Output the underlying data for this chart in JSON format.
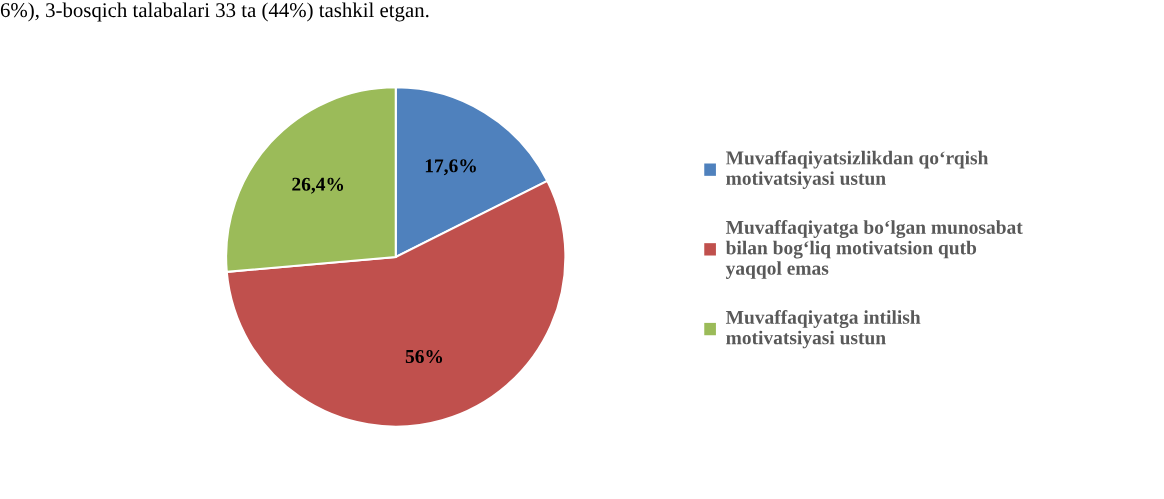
{
  "chart_data": {
    "type": "pie",
    "categories": [
      "Muvaffaqiyatsizlikdan qo‘rqish motivatsiyasi ustun",
      "Muvaffaqiyatga bo‘lgan munosabat bilan bog‘liq motivatsion qutb yaqqol emas",
      "Muvaffaqiyatga intilish motivatsiyasi ustun"
    ],
    "values": [
      17.6,
      56,
      26.4
    ],
    "value_labels": [
      "17,6%",
      "56%",
      "26,4%"
    ],
    "colors": [
      "#4f81bd",
      "#c0504d",
      "#9bbb59"
    ],
    "legend": "right",
    "annotations": [
      "6%), 3-bosqich talabalari 33 ta (44%) tashkil etgan."
    ]
  }
}
